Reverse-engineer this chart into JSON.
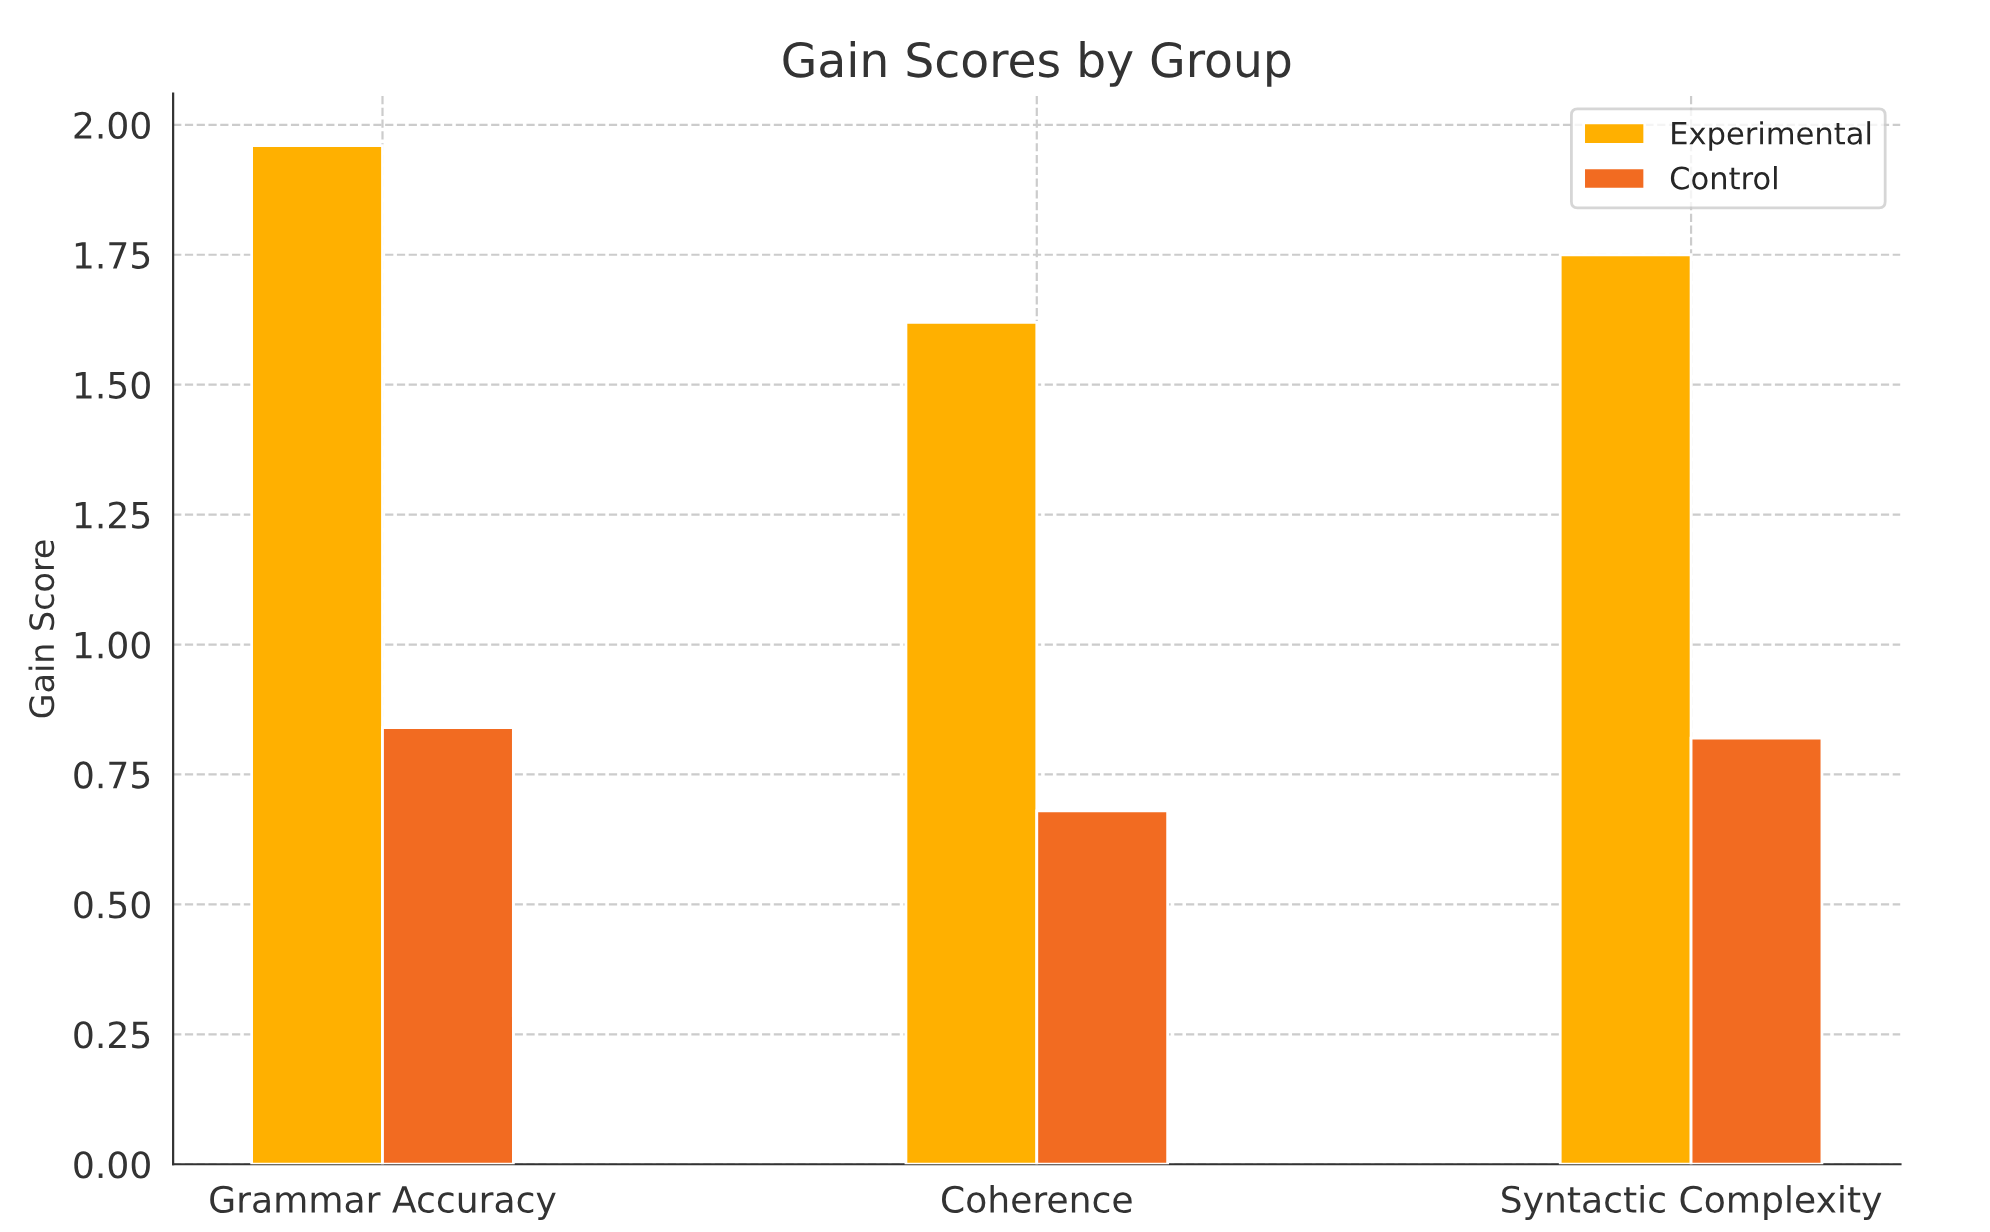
{
  "chart_data": {
    "type": "bar",
    "title": "Gain Scores by Group",
    "ylabel": "Gain Score",
    "categories": [
      "Grammar Accuracy",
      "Coherence",
      "Syntactic Complexity"
    ],
    "series": [
      {
        "name": "Experimental",
        "color": "#ffb000",
        "values": [
          1.96,
          1.62,
          1.75
        ]
      },
      {
        "name": "Control",
        "color": "#f26b21",
        "values": [
          0.84,
          0.68,
          0.82
        ]
      }
    ],
    "ylim": [
      0,
      2.06
    ],
    "yticks": [
      {
        "value": 0,
        "label": "0.00"
      },
      {
        "value": 0.25,
        "label": "0.25"
      },
      {
        "value": 0.5,
        "label": "0.50"
      },
      {
        "value": 0.75,
        "label": "0.75"
      },
      {
        "value": 1,
        "label": "1.00"
      },
      {
        "value": 1.25,
        "label": "1.25"
      },
      {
        "value": 1.5,
        "label": "1.50"
      },
      {
        "value": 1.75,
        "label": "1.75"
      },
      {
        "value": 2,
        "label": "2.00"
      }
    ],
    "grid": true,
    "legend": "top right"
  }
}
